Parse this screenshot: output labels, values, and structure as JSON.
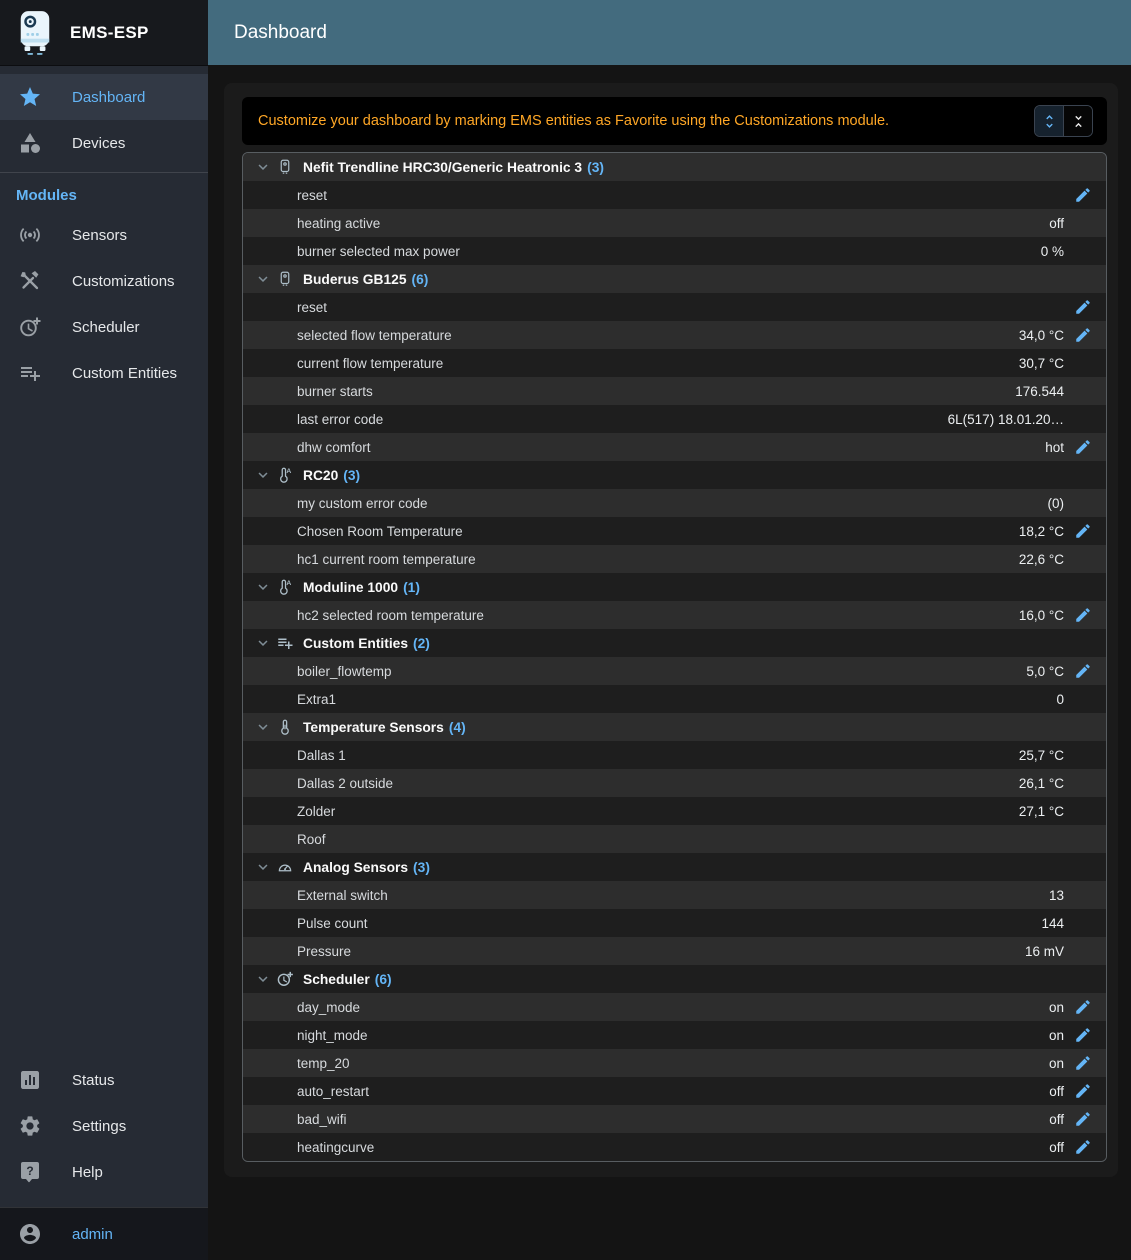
{
  "app": {
    "title": "EMS-ESP",
    "logo_icon": "boiler-logo-icon"
  },
  "header": {
    "title": "Dashboard"
  },
  "colors": {
    "accent": "#64b5f6",
    "warning": "#ffa726",
    "header_bg": "#436b7e"
  },
  "notice": {
    "text": "Customize your dashboard by marking EMS entities as Favorite using the Customizations module.",
    "buttons": [
      {
        "name": "expand-all",
        "icon": "unfold-more-icon",
        "selected": true
      },
      {
        "name": "collapse-all",
        "icon": "unfold-less-icon",
        "selected": false
      }
    ]
  },
  "sidebar": {
    "primary": [
      {
        "label": "Dashboard",
        "icon": "star-icon",
        "active": true
      },
      {
        "label": "Devices",
        "icon": "devices-icon",
        "active": false
      }
    ],
    "modules_header": "Modules",
    "modules": [
      {
        "label": "Sensors",
        "icon": "sensors-icon"
      },
      {
        "label": "Customizations",
        "icon": "tools-icon"
      },
      {
        "label": "Scheduler",
        "icon": "clock-plus-icon"
      },
      {
        "label": "Custom Entities",
        "icon": "playlist-add-icon"
      }
    ],
    "bottom": [
      {
        "label": "Status",
        "icon": "status-icon"
      },
      {
        "label": "Settings",
        "icon": "gear-icon"
      },
      {
        "label": "Help",
        "icon": "help-icon"
      }
    ],
    "user": {
      "label": "admin",
      "icon": "account-icon"
    }
  },
  "dashboard": {
    "groups": [
      {
        "name": "Nefit Trendline HRC30/Generic Heatronic 3",
        "count": 3,
        "icon": "boiler-icon",
        "entities": [
          {
            "name": "reset",
            "value": "",
            "editable": true
          },
          {
            "name": "heating active",
            "value": "off",
            "editable": false
          },
          {
            "name": "burner selected max power",
            "value": "0 %",
            "editable": false
          }
        ]
      },
      {
        "name": "Buderus GB125",
        "count": 6,
        "icon": "boiler-icon",
        "entities": [
          {
            "name": "reset",
            "value": "",
            "editable": true
          },
          {
            "name": "selected flow temperature",
            "value": "34,0 °C",
            "editable": true
          },
          {
            "name": "current flow temperature",
            "value": "30,7 °C",
            "editable": false
          },
          {
            "name": "burner starts",
            "value": "176.544",
            "editable": false
          },
          {
            "name": "last error code",
            "value": "6L(517) 18.01.20…",
            "editable": false
          },
          {
            "name": "dhw comfort",
            "value": "hot",
            "editable": true
          }
        ]
      },
      {
        "name": "RC20",
        "count": 3,
        "icon": "thermostat-auto-icon",
        "entities": [
          {
            "name": "my custom error code",
            "value": "(0)",
            "editable": false
          },
          {
            "name": "Chosen Room Temperature",
            "value": "18,2 °C",
            "editable": true
          },
          {
            "name": "hc1 current room temperature",
            "value": "22,6 °C",
            "editable": false
          }
        ]
      },
      {
        "name": "Moduline 1000",
        "count": 1,
        "icon": "thermostat-auto-icon",
        "entities": [
          {
            "name": "hc2 selected room temperature",
            "value": "16,0 °C",
            "editable": true
          }
        ]
      },
      {
        "name": "Custom Entities",
        "count": 2,
        "icon": "playlist-add-icon",
        "entities": [
          {
            "name": "boiler_flowtemp",
            "value": "5,0 °C",
            "editable": true
          },
          {
            "name": "Extra1",
            "value": "0",
            "editable": false
          }
        ]
      },
      {
        "name": "Temperature Sensors",
        "count": 4,
        "icon": "thermometer-icon",
        "entities": [
          {
            "name": "Dallas 1",
            "value": "25,7 °C",
            "editable": false
          },
          {
            "name": "Dallas 2 outside",
            "value": "26,1 °C",
            "editable": false
          },
          {
            "name": "Zolder",
            "value": "27,1 °C",
            "editable": false
          },
          {
            "name": "Roof",
            "value": "",
            "editable": false
          }
        ]
      },
      {
        "name": "Analog Sensors",
        "count": 3,
        "icon": "gauge-icon",
        "entities": [
          {
            "name": "External switch",
            "value": "13",
            "editable": false
          },
          {
            "name": "Pulse count",
            "value": "144",
            "editable": false
          },
          {
            "name": "Pressure",
            "value": "16 mV",
            "editable": false
          }
        ]
      },
      {
        "name": "Scheduler",
        "count": 6,
        "icon": "clock-plus-icon",
        "entities": [
          {
            "name": "day_mode",
            "value": "on",
            "editable": true
          },
          {
            "name": "night_mode",
            "value": "on",
            "editable": true
          },
          {
            "name": "temp_20",
            "value": "on",
            "editable": true
          },
          {
            "name": "auto_restart",
            "value": "off",
            "editable": true
          },
          {
            "name": "bad_wifi",
            "value": "off",
            "editable": true
          },
          {
            "name": "heatingcurve",
            "value": "off",
            "editable": true
          }
        ]
      }
    ]
  }
}
